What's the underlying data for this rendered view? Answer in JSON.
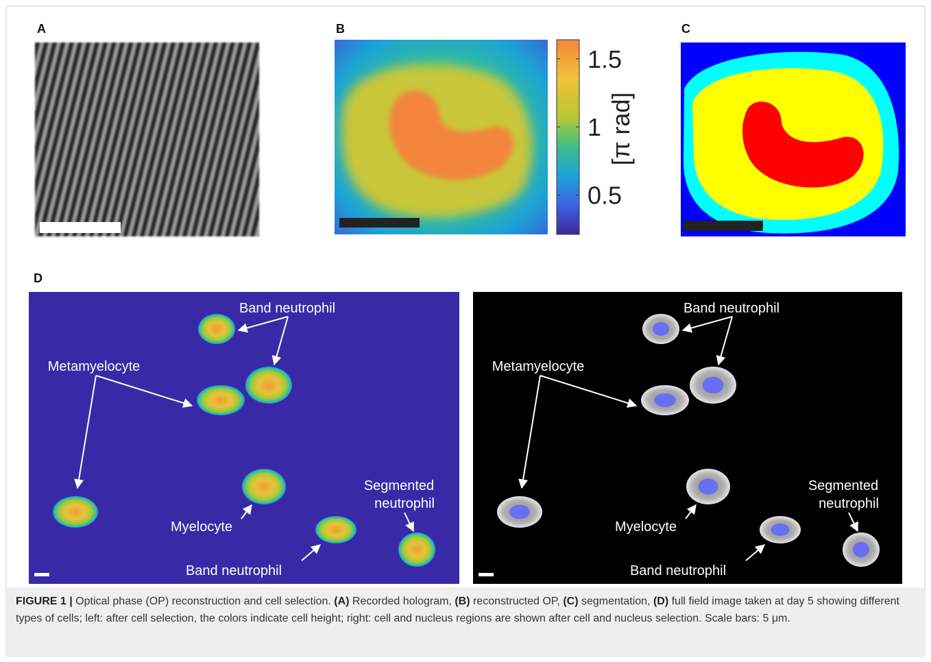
{
  "panels": {
    "a": {
      "label": "A"
    },
    "b": {
      "label": "B"
    },
    "c": {
      "label": "C"
    },
    "d": {
      "label": "D"
    }
  },
  "colorbar": {
    "clim": [
      0.21,
      1.64
    ],
    "ticks": [
      0.5,
      1,
      1.5
    ],
    "label": "[π rad]"
  },
  "panel_d": {
    "left": {
      "labels": [
        "Band neutrophil",
        "Metamyelocyte",
        "Segmented",
        "neutrophil",
        "Myelocyte",
        "Band neutrophil"
      ]
    },
    "right": {
      "labels": [
        "Band neutrophil",
        "Metamyelocyte",
        "Segmented",
        "neutrophil",
        "Myelocyte",
        "Band neutrophil"
      ]
    }
  },
  "caption": [
    {
      "text": "FIGURE 1 |",
      "bold": true
    },
    {
      "text": " Optical phase (OP) reconstruction and cell selection. ",
      "bold": false
    },
    {
      "text": "(A)",
      "bold": true
    },
    {
      "text": " Recorded hologram, ",
      "bold": false
    },
    {
      "text": "(B)",
      "bold": true
    },
    {
      "text": " reconstructed OP, ",
      "bold": false
    },
    {
      "text": "(C)",
      "bold": true
    },
    {
      "text": " segmentation, ",
      "bold": false
    },
    {
      "text": "(D)",
      "bold": true
    },
    {
      "text": " full field image taken at day 5 showing different types of cells; left: after cell selection, the colors indicate cell height; right: cell and nucleus regions are shown after cell and nucleus selection. Scale bars: 5 μm.",
      "bold": false
    }
  ]
}
